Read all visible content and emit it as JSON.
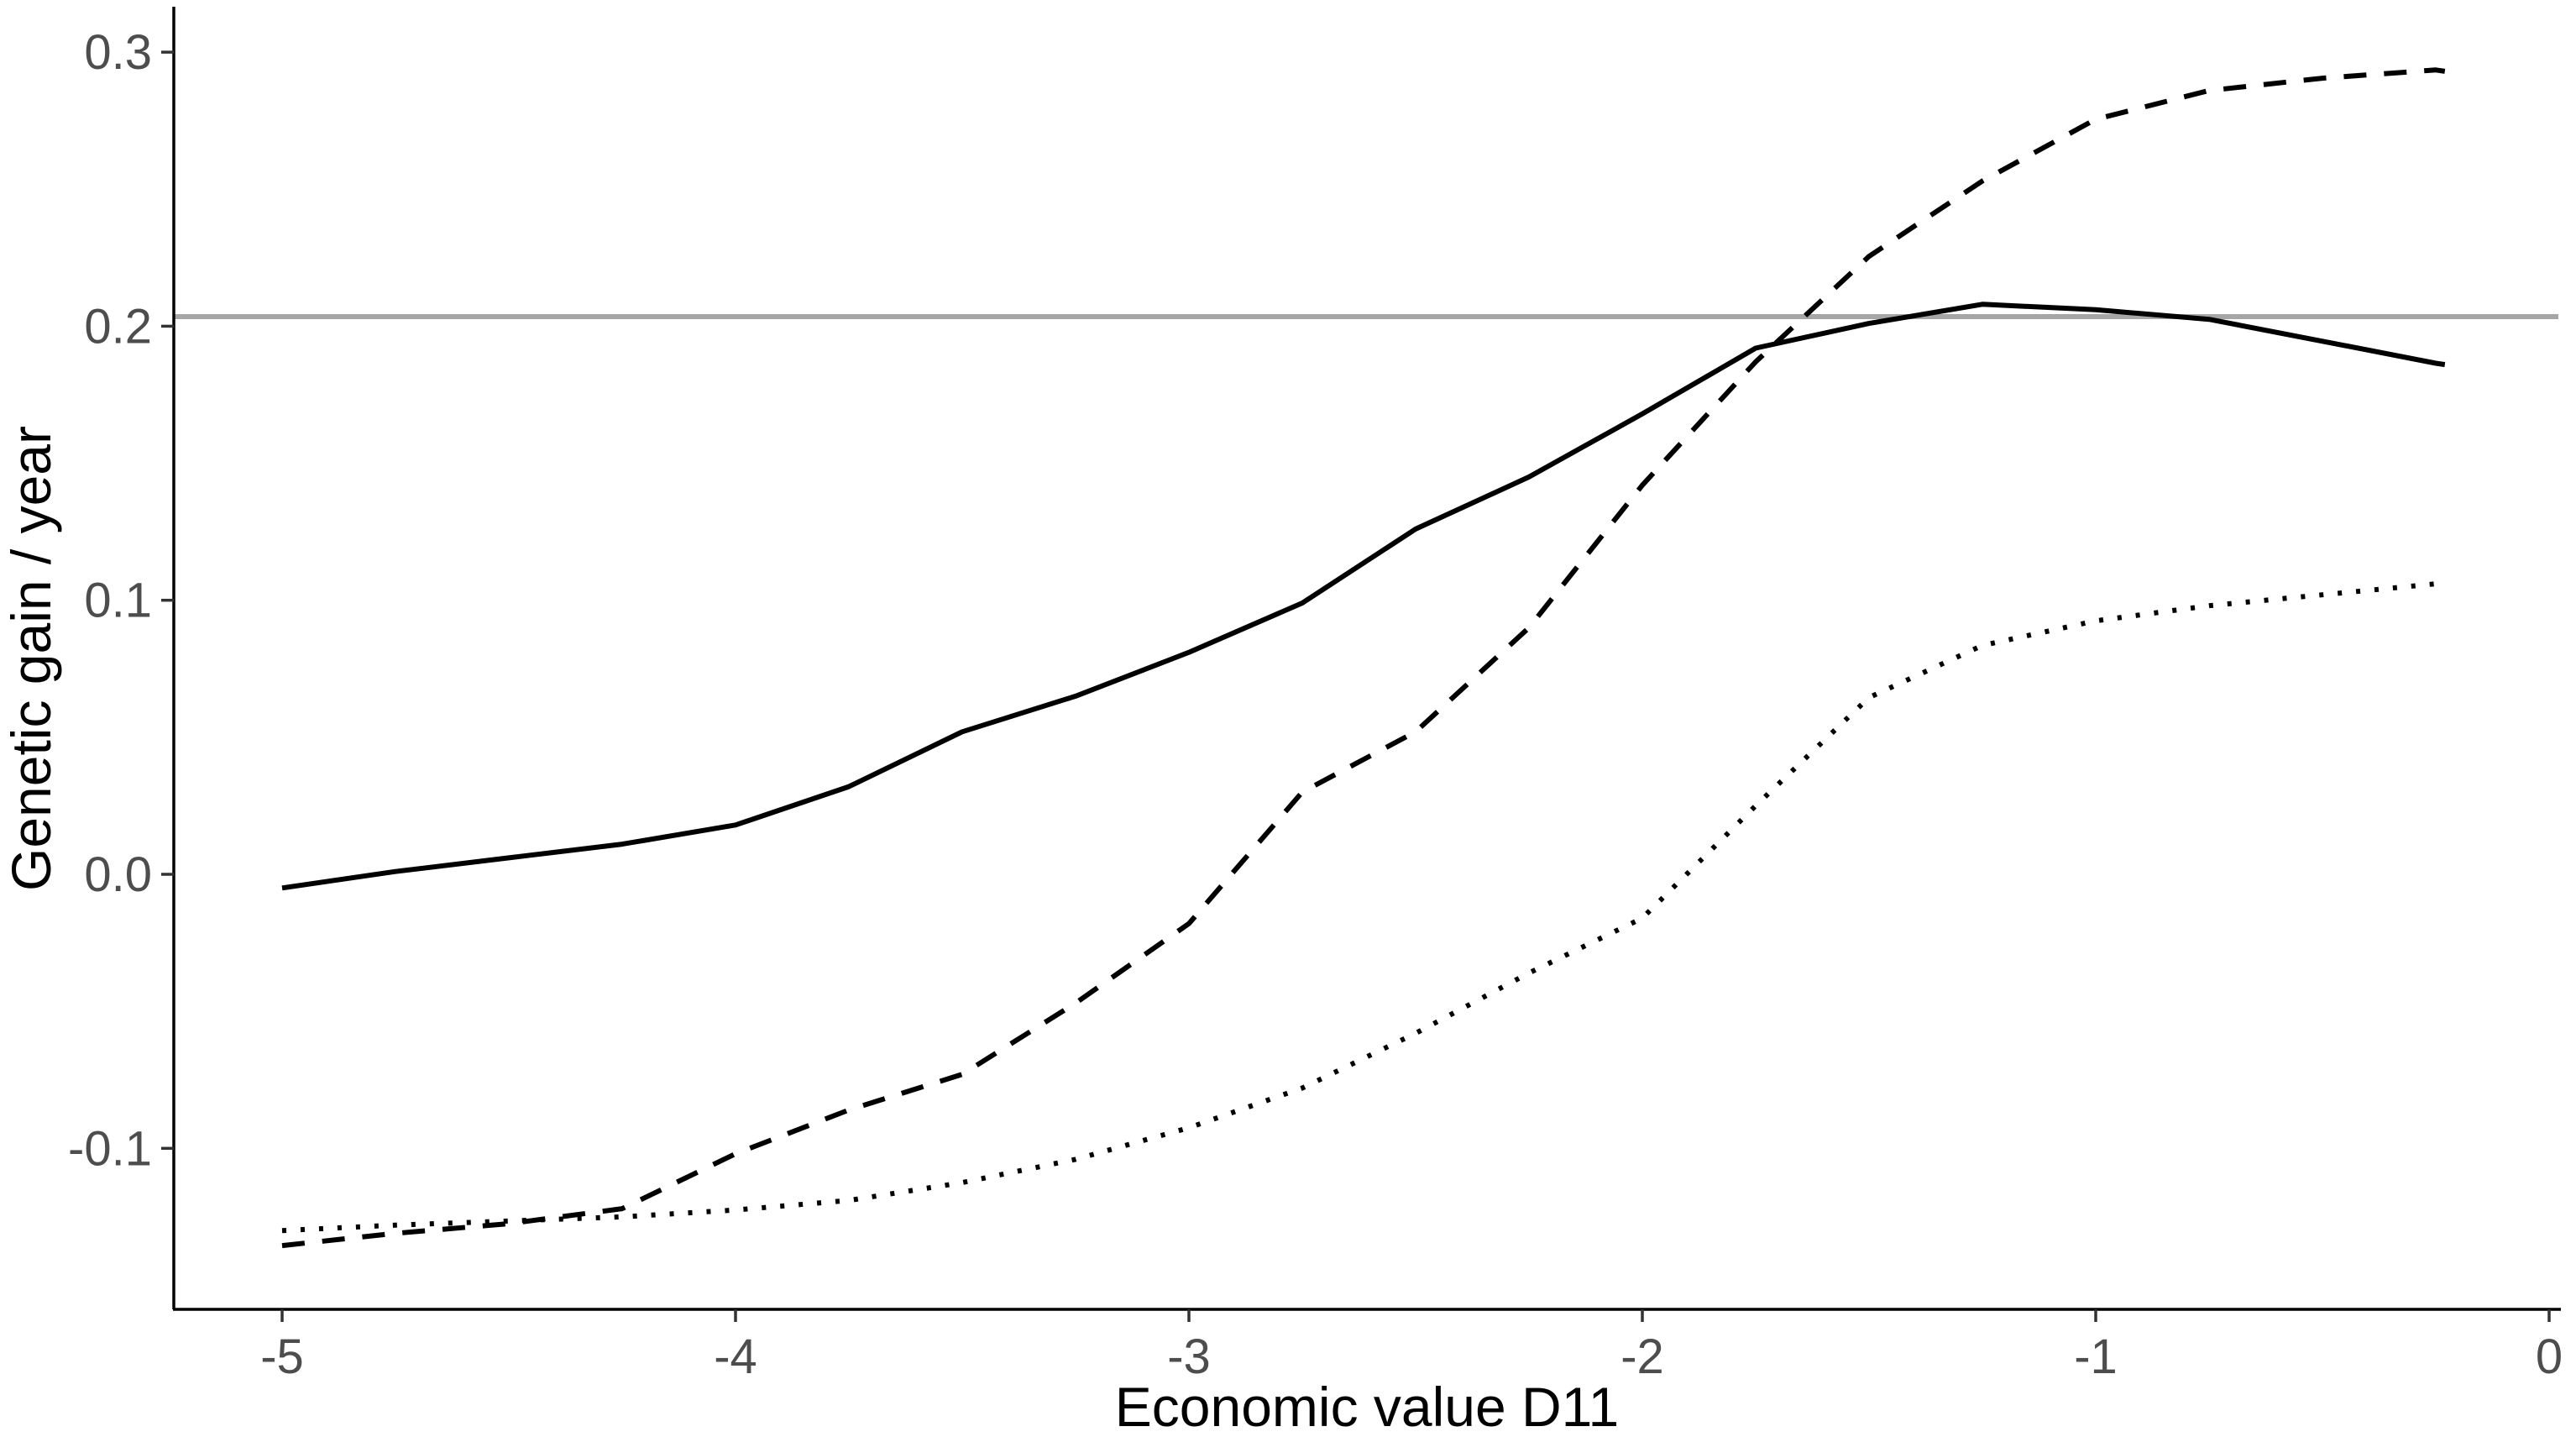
{
  "chart_data": {
    "type": "line",
    "title": "",
    "xlabel": "Economic value D11",
    "ylabel": "Genetic gain / year",
    "xlim": [
      -5.24,
      0.02
    ],
    "ylim": [
      -0.159,
      0.316
    ],
    "grid": "off",
    "legend": "none",
    "background_color": "#ffffff",
    "axis_color": "#000000",
    "tick_label_color": "#4d4d4d",
    "x_ticks": {
      "values": [
        -5,
        -4,
        -3,
        -2,
        -1,
        0
      ],
      "labels": [
        "-5",
        "-4",
        "-3",
        "-2",
        "-1",
        "0"
      ]
    },
    "y_ticks": {
      "values": [
        -0.1,
        0.0,
        0.1,
        0.2,
        0.3
      ],
      "labels": [
        "-0.1",
        "0.0",
        "0.1",
        "0.2",
        "0.3"
      ]
    },
    "reference_line": {
      "orientation": "horizontal",
      "y": 0.2035,
      "color": "#a6a6a6"
    },
    "x": [
      -5,
      -4.75,
      -4.5,
      -4.25,
      -4,
      -3.75,
      -3.5,
      -3.25,
      -3,
      -2.75,
      -2.5,
      -2.25,
      -2,
      -1.75,
      -1.5,
      -1.25,
      -1,
      -0.75,
      -0.5,
      -0.25,
      -0.23
    ],
    "series": [
      {
        "name": "solid",
        "line_style": "solid",
        "color": "#000000",
        "values": [
          -0.005,
          0.001,
          0.006,
          0.011,
          0.018,
          0.032,
          0.052,
          0.065,
          0.081,
          0.099,
          0.126,
          0.145,
          0.168,
          0.192,
          0.201,
          0.208,
          0.206,
          0.2025,
          0.1945,
          0.1865,
          0.186
        ]
      },
      {
        "name": "dashed",
        "line_style": "dashed",
        "color": "#000000",
        "values": [
          -0.1355,
          -0.131,
          -0.1275,
          -0.122,
          -0.102,
          -0.086,
          -0.073,
          -0.047,
          -0.018,
          0.03,
          0.052,
          0.09,
          0.142,
          0.187,
          0.2255,
          0.253,
          0.2755,
          0.286,
          0.2905,
          0.2935,
          0.293
        ]
      },
      {
        "name": "dotted",
        "line_style": "dotted",
        "color": "#000000",
        "values": [
          -0.13,
          -0.128,
          -0.1265,
          -0.125,
          -0.1225,
          -0.119,
          -0.1125,
          -0.104,
          -0.0925,
          -0.078,
          -0.058,
          -0.036,
          -0.016,
          0.025,
          0.0645,
          0.0835,
          0.0925,
          0.098,
          0.102,
          0.106,
          0.1066
        ]
      }
    ]
  }
}
